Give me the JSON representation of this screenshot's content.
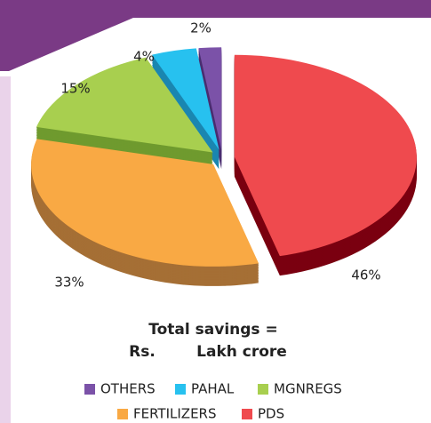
{
  "chart_data": {
    "type": "pie",
    "categories": [
      "OTHERS",
      "PAHAL",
      "MGNREGS",
      "FERTILIZERS",
      "PDS"
    ],
    "values": [
      2,
      4,
      15,
      33,
      46
    ],
    "value_labels": [
      "2%",
      "4%",
      "15%",
      "33%",
      "46%"
    ],
    "colors": [
      "#7b52a8",
      "#27c1ef",
      "#a8cf4f",
      "#f9a944",
      "#ef4a4e"
    ],
    "side_colors": [
      "#4a2e70",
      "#1a86b0",
      "#6f9a2e",
      "#a56f35",
      "#7a0010"
    ],
    "annotations": [
      "Total savings =",
      "Rs.",
      "Lakh crore"
    ],
    "legend": "bottom"
  }
}
